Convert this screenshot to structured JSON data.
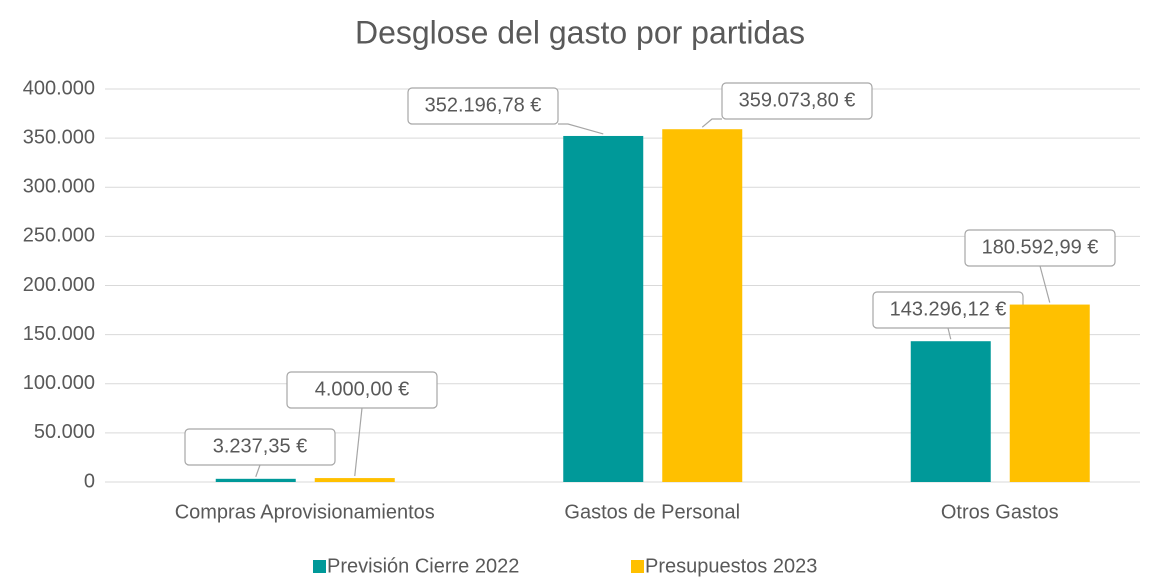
{
  "chart_data": {
    "type": "bar",
    "title": "Desglose del gasto por partidas",
    "categories": [
      "Compras Aprovisionamientos",
      "Gastos de Personal",
      "Otros Gastos"
    ],
    "series": [
      {
        "name": "Previsión Cierre  2022",
        "color": "#009999",
        "values": [
          3237.35,
          352196.78,
          143296.12
        ],
        "value_labels": [
          "3.237,35 €",
          "352.196,78 €",
          "143.296,12 €"
        ]
      },
      {
        "name": "Presupuestos 2023",
        "color": "#ffc000",
        "values": [
          4000,
          359073.8,
          180592.99
        ],
        "value_labels": [
          "4.000,00 €",
          "359.073,80 €",
          "180.592,99 €"
        ]
      }
    ],
    "ylim": [
      0,
      400000
    ],
    "yticks": [
      0,
      {
        "value": 50000,
        "label": "50.000"
      },
      {
        "value": 100000,
        "label": "100.000"
      },
      {
        "value": 150000,
        "label": "150.000"
      },
      {
        "value": 200000,
        "label": "200.000"
      },
      {
        "value": 250000,
        "label": "250.000"
      },
      {
        "value": 300000,
        "label": "300.000"
      },
      {
        "value": 350000,
        "label": "350.000"
      },
      {
        "value": 400000,
        "label": "400.000"
      }
    ],
    "grid": true,
    "legend": "bottom"
  }
}
